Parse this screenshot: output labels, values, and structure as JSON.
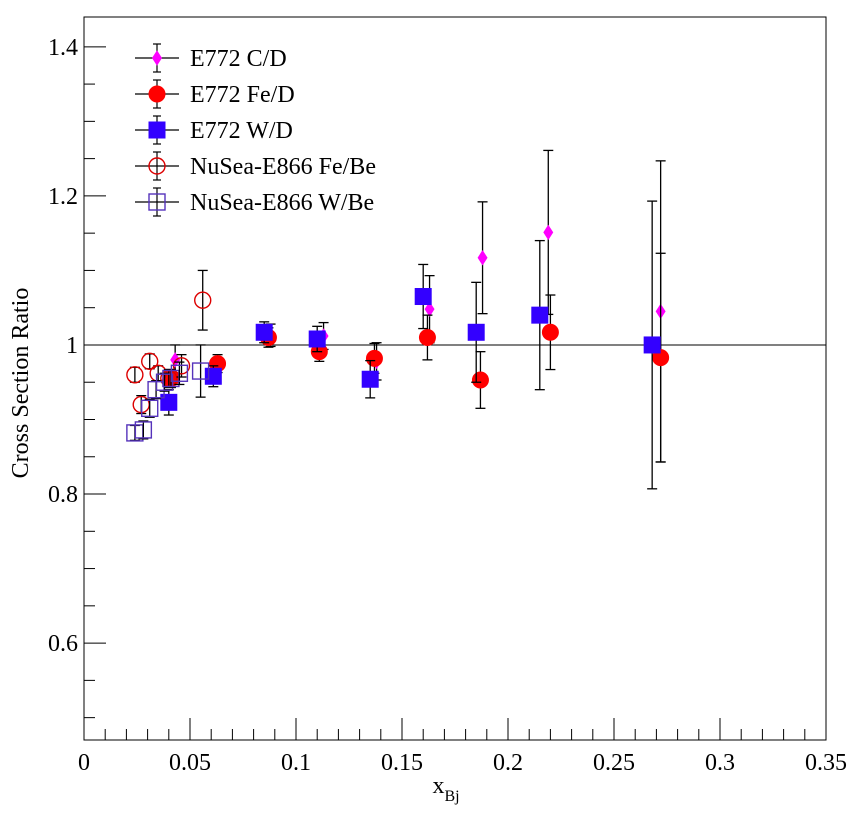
{
  "chart_data": {
    "type": "scatter",
    "xlabel": "x",
    "xlabel_sub": "Bj",
    "ylabel": "Cross Section Ratio",
    "xlim": [
      0,
      0.35
    ],
    "ylim": [
      0.47,
      1.44
    ],
    "x_ticks": [
      0,
      0.05,
      0.1,
      0.15,
      0.2,
      0.25,
      0.3,
      0.35
    ],
    "x_tick_labels": [
      "0",
      "0.05",
      "0.1",
      "0.15",
      "0.2",
      "0.25",
      "0.3",
      "0.35"
    ],
    "y_ticks": [
      0.6,
      0.8,
      1.0,
      1.2,
      1.4
    ],
    "y_tick_labels": [
      "0.6",
      "0.8",
      "1",
      "1.2",
      "1.4"
    ],
    "reference_line": 1.0,
    "grid": false,
    "legend_position": "top-left",
    "series": [
      {
        "name": "E772 C/D",
        "marker": "diamond-filled",
        "color": "#ff00ff",
        "points": [
          {
            "x": 0.043,
            "y": 0.98,
            "err": 0.02
          },
          {
            "x": 0.088,
            "y": 1.013,
            "err": 0.015
          },
          {
            "x": 0.113,
            "y": 1.012,
            "err": 0.018
          },
          {
            "x": 0.138,
            "y": 0.978,
            "err": 0.025
          },
          {
            "x": 0.163,
            "y": 1.048,
            "err": 0.045
          },
          {
            "x": 0.188,
            "y": 1.117,
            "err": 0.075
          },
          {
            "x": 0.219,
            "y": 1.151,
            "err": 0.11
          },
          {
            "x": 0.272,
            "y": 1.045,
            "err": 0.202
          }
        ]
      },
      {
        "name": "E772 Fe/D",
        "marker": "circle-filled",
        "color": "#ff0000",
        "points": [
          {
            "x": 0.041,
            "y": 0.955,
            "err": 0.012
          },
          {
            "x": 0.063,
            "y": 0.975,
            "err": 0.012
          },
          {
            "x": 0.087,
            "y": 1.01,
            "err": 0.013
          },
          {
            "x": 0.111,
            "y": 0.991,
            "err": 0.013
          },
          {
            "x": 0.137,
            "y": 0.982,
            "err": 0.02
          },
          {
            "x": 0.162,
            "y": 1.01,
            "err": 0.03
          },
          {
            "x": 0.187,
            "y": 0.953,
            "err": 0.038
          },
          {
            "x": 0.22,
            "y": 1.017,
            "err": 0.05
          },
          {
            "x": 0.272,
            "y": 0.983,
            "err": 0.14
          }
        ]
      },
      {
        "name": "E772 W/D",
        "marker": "square-filled",
        "color": "#3300ff",
        "points": [
          {
            "x": 0.04,
            "y": 0.923,
            "err": 0.017
          },
          {
            "x": 0.061,
            "y": 0.958,
            "err": 0.014
          },
          {
            "x": 0.085,
            "y": 1.017,
            "err": 0.014
          },
          {
            "x": 0.11,
            "y": 1.008,
            "err": 0.017
          },
          {
            "x": 0.135,
            "y": 0.954,
            "err": 0.025
          },
          {
            "x": 0.16,
            "y": 1.065,
            "err": 0.043
          },
          {
            "x": 0.185,
            "y": 1.017,
            "err": 0.067
          },
          {
            "x": 0.215,
            "y": 1.04,
            "err": 0.1
          },
          {
            "x": 0.268,
            "y": 1.0,
            "err": 0.193
          }
        ]
      },
      {
        "name": "NuSea-E866 Fe/Be",
        "marker": "circle-open",
        "color": "#dd0000",
        "points": [
          {
            "x": 0.024,
            "y": 0.96,
            "err": 0.01
          },
          {
            "x": 0.027,
            "y": 0.92,
            "err": 0.012
          },
          {
            "x": 0.031,
            "y": 0.978,
            "err": 0.01
          },
          {
            "x": 0.035,
            "y": 0.962,
            "err": 0.01
          },
          {
            "x": 0.04,
            "y": 0.955,
            "err": 0.012
          },
          {
            "x": 0.046,
            "y": 0.972,
            "err": 0.015
          },
          {
            "x": 0.056,
            "y": 1.06,
            "err": 0.04
          }
        ]
      },
      {
        "name": "NuSea-E866 W/Be",
        "marker": "square-open",
        "color": "#5533bb",
        "points": [
          {
            "x": 0.024,
            "y": 0.882,
            "err": 0.01
          },
          {
            "x": 0.028,
            "y": 0.886,
            "err": 0.012
          },
          {
            "x": 0.031,
            "y": 0.915,
            "err": 0.012
          },
          {
            "x": 0.034,
            "y": 0.94,
            "err": 0.012
          },
          {
            "x": 0.038,
            "y": 0.95,
            "err": 0.012
          },
          {
            "x": 0.041,
            "y": 0.955,
            "err": 0.012
          },
          {
            "x": 0.045,
            "y": 0.962,
            "err": 0.015
          },
          {
            "x": 0.055,
            "y": 0.965,
            "err": 0.035
          }
        ]
      }
    ]
  }
}
